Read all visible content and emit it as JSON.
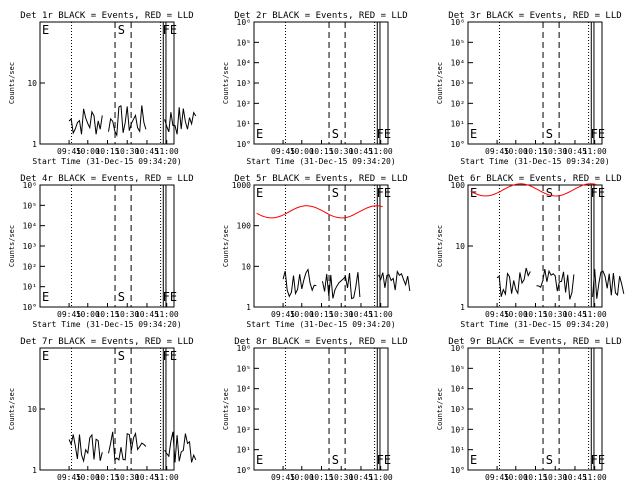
{
  "chart_data": {
    "type": "line",
    "xlabel": "Start Time (31-Dec-15 09:34:20)",
    "ylabel": "Counts/sec",
    "x_ticks": [
      "09:45",
      "10:00",
      "10:15",
      "10:30",
      "10:45",
      "11:00"
    ],
    "colors": {
      "events": "#000000",
      "lld": "#ff0000",
      "axes": "#000000"
    },
    "panels": [
      {
        "title": "Det 1r BLACK = Events, RED = LLD",
        "ylim": [
          1,
          100
        ],
        "y_ticks": [
          "1",
          "10"
        ],
        "markers": {
          "E": "E",
          "S": "S",
          "FE": "FE"
        },
        "marker_pos": "top"
      },
      {
        "title": "Det 2r BLACK = Events, RED = LLD",
        "ylim": [
          1,
          1000000
        ],
        "y_ticks": [
          "10°",
          "10¹",
          "10²",
          "10³",
          "10⁴",
          "10⁵",
          "10⁶"
        ],
        "markers": {
          "E": "E",
          "S": "S",
          "FE": "FE"
        },
        "marker_pos": "bottom"
      },
      {
        "title": "Det 3r BLACK = Events, RED = LLD",
        "ylim": [
          1,
          1000000
        ],
        "y_ticks": [
          "10°",
          "10¹",
          "10²",
          "10³",
          "10⁴",
          "10⁵",
          "10⁶"
        ],
        "markers": {
          "E": "E",
          "S": "S",
          "FE": "FE"
        },
        "marker_pos": "bottom"
      },
      {
        "title": "Det 4r BLACK = Events, RED = LLD",
        "ylim": [
          1,
          1000000
        ],
        "y_ticks": [
          "10°",
          "10¹",
          "10²",
          "10³",
          "10⁴",
          "10⁵",
          "10⁶"
        ],
        "markers": {
          "E": "E",
          "S": "S",
          "FE": "FE"
        },
        "marker_pos": "bottom"
      },
      {
        "title": "Det 5r BLACK = Events, RED = LLD",
        "ylim": [
          1,
          1000
        ],
        "y_ticks": [
          "1",
          "10",
          "100",
          "1000"
        ],
        "markers": {
          "E": "E",
          "S": "S",
          "FE": "FE"
        },
        "marker_pos": "top"
      },
      {
        "title": "Det 6r BLACK = Events, RED = LLD",
        "ylim": [
          1,
          100
        ],
        "y_ticks": [
          "1",
          "10",
          "100"
        ],
        "markers": {
          "E": "E",
          "S": "S",
          "FE": "FE"
        },
        "marker_pos": "top"
      },
      {
        "title": "Det 7r BLACK = Events, RED = LLD",
        "ylim": [
          1,
          100
        ],
        "y_ticks": [
          "1",
          "10"
        ],
        "markers": {
          "E": "E",
          "S": "S",
          "FE": "FE"
        },
        "marker_pos": "top"
      },
      {
        "title": "Det 8r BLACK = Events, RED = LLD",
        "ylim": [
          1,
          1000000
        ],
        "y_ticks": [
          "10°",
          "10¹",
          "10²",
          "10³",
          "10⁴",
          "10⁵",
          "10⁶"
        ],
        "markers": {
          "E": "E",
          "S": "S",
          "FE": "FE"
        },
        "marker_pos": "bottom"
      },
      {
        "title": "Det 9r BLACK = Events, RED = LLD",
        "ylim": [
          1,
          1000000
        ],
        "y_ticks": [
          "10°",
          "10¹",
          "10²",
          "10³",
          "10⁴",
          "10⁵",
          "10⁶"
        ],
        "markers": {
          "E": "E",
          "S": "S",
          "FE": "FE"
        },
        "marker_pos": "bottom"
      }
    ]
  }
}
